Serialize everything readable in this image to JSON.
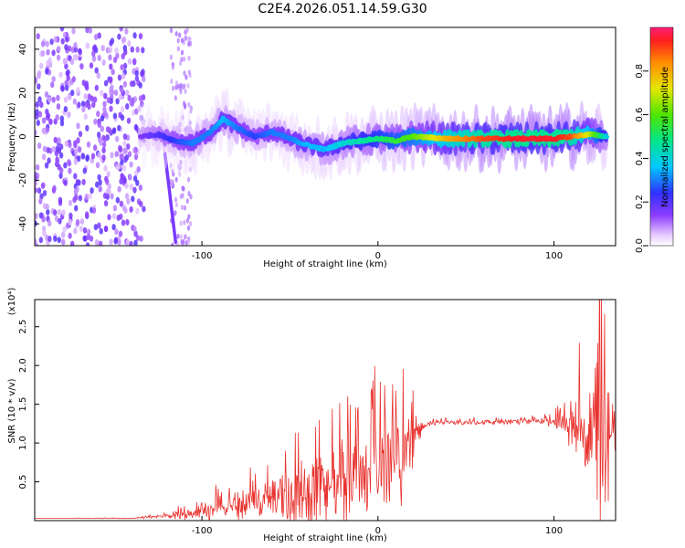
{
  "title": "C2E4.2026.051.14.59.G30",
  "chart_data": [
    {
      "type": "heatmap",
      "name": "spectrogram",
      "xlabel": "Height of straight line (km)",
      "ylabel": "Frequency (Hz)",
      "xlim": [
        -195,
        135
      ],
      "ylim": [
        -50,
        50
      ],
      "xticks": [
        -100,
        0,
        100
      ],
      "yticks": [
        -40,
        -20,
        0,
        20,
        40
      ],
      "colorbar": {
        "label": "Normalized spectral amplitude",
        "range": [
          0,
          1
        ],
        "ticks": [
          0.0,
          0.2,
          0.4,
          0.6,
          0.8
        ],
        "tick_labels": [
          "0.0",
          "0.2",
          "0.4",
          "0.6",
          "0.8"
        ]
      },
      "ridge": {
        "x": [
          -135,
          -125,
          -115,
          -105,
          -95,
          -88,
          -80,
          -70,
          -60,
          -50,
          -40,
          -30,
          -20,
          -10,
          0,
          10,
          20,
          40,
          60,
          80,
          100,
          110,
          120,
          130
        ],
        "freq": [
          0,
          1,
          -2,
          -3,
          2,
          8,
          4,
          0,
          2,
          -1,
          -4,
          -6,
          -3,
          -2,
          -1,
          -2,
          0,
          -1,
          -1,
          -1,
          -1,
          0,
          1,
          0
        ],
        "amplitude": [
          0.15,
          0.2,
          0.25,
          0.3,
          0.3,
          0.35,
          0.3,
          0.25,
          0.3,
          0.3,
          0.35,
          0.35,
          0.4,
          0.45,
          0.5,
          0.55,
          0.6,
          0.8,
          0.9,
          0.95,
          0.95,
          0.9,
          0.7,
          0.4
        ]
      }
    },
    {
      "type": "line",
      "name": "snr",
      "xlabel": "Height of straight line (km)",
      "ylabel": "SNR (10 * v/v)",
      "y_multiplier": "(x10⁴)",
      "xlim": [
        -195,
        135
      ],
      "ylim": [
        0,
        2.85
      ],
      "xticks": [
        -100,
        0,
        100
      ],
      "yticks": [
        0.5,
        1.0,
        1.5,
        2.0,
        2.5
      ],
      "ytick_labels": [
        "0.5",
        "1.0",
        "1.5",
        "2.0",
        "2.5"
      ],
      "color": "#e8322e",
      "envelope": {
        "x": [
          -195,
          -140,
          -125,
          -115,
          -105,
          -90,
          -75,
          -60,
          -45,
          -35,
          -25,
          -15,
          -5,
          5,
          15,
          20,
          25,
          30,
          50,
          70,
          90,
          100,
          110,
          115,
          120,
          125,
          130,
          135
        ],
        "base": [
          0.03,
          0.03,
          0.05,
          0.08,
          0.1,
          0.18,
          0.22,
          0.28,
          0.35,
          0.42,
          0.48,
          0.55,
          0.65,
          0.75,
          0.9,
          1.05,
          1.2,
          1.26,
          1.27,
          1.27,
          1.28,
          1.28,
          1.25,
          1.2,
          1.15,
          1.1,
          1.1,
          1.1
        ],
        "spread": [
          0.0,
          0.005,
          0.02,
          0.05,
          0.08,
          0.15,
          0.2,
          0.3,
          0.4,
          0.55,
          0.5,
          0.55,
          0.6,
          0.6,
          0.5,
          0.35,
          0.05,
          0.03,
          0.03,
          0.03,
          0.04,
          0.06,
          0.25,
          0.55,
          0.9,
          1.2,
          0.9,
          0.8
        ]
      }
    }
  ]
}
